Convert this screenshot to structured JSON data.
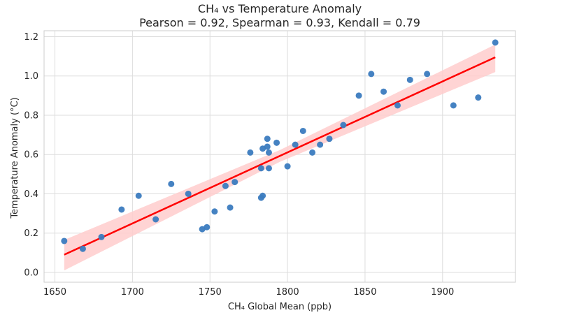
{
  "chart_data": {
    "type": "scatter",
    "title": "CH₄ vs Temperature Anomaly",
    "subtitle": "Pearson = 0.92, Spearman = 0.93, Kendall = 0.79",
    "xlabel": "CH₄ Global Mean (ppb)",
    "ylabel": "Temperature Anomaly (°C)",
    "xlim": [
      1643,
      1947
    ],
    "ylim": [
      -0.05,
      1.23
    ],
    "xticks": [
      1650,
      1700,
      1750,
      1800,
      1850,
      1900
    ],
    "yticks": [
      0.0,
      0.2,
      0.4,
      0.6,
      0.8,
      1.0,
      1.2
    ],
    "ytick_labels": [
      "0.0",
      "0.2",
      "0.4",
      "0.6",
      "0.8",
      "1.0",
      "1.2"
    ],
    "grid": true,
    "points": [
      {
        "x": 1656,
        "y": 0.16
      },
      {
        "x": 1668,
        "y": 0.12
      },
      {
        "x": 1680,
        "y": 0.18
      },
      {
        "x": 1693,
        "y": 0.32
      },
      {
        "x": 1704,
        "y": 0.39
      },
      {
        "x": 1715,
        "y": 0.27
      },
      {
        "x": 1725,
        "y": 0.45
      },
      {
        "x": 1736,
        "y": 0.4
      },
      {
        "x": 1745,
        "y": 0.22
      },
      {
        "x": 1748,
        "y": 0.23
      },
      {
        "x": 1753,
        "y": 0.31
      },
      {
        "x": 1760,
        "y": 0.44
      },
      {
        "x": 1763,
        "y": 0.33
      },
      {
        "x": 1766,
        "y": 0.46
      },
      {
        "x": 1776,
        "y": 0.61
      },
      {
        "x": 1783,
        "y": 0.53
      },
      {
        "x": 1783,
        "y": 0.38
      },
      {
        "x": 1784,
        "y": 0.39
      },
      {
        "x": 1784,
        "y": 0.63
      },
      {
        "x": 1787,
        "y": 0.64
      },
      {
        "x": 1787,
        "y": 0.68
      },
      {
        "x": 1788,
        "y": 0.61
      },
      {
        "x": 1788,
        "y": 0.53
      },
      {
        "x": 1793,
        "y": 0.66
      },
      {
        "x": 1800,
        "y": 0.54
      },
      {
        "x": 1805,
        "y": 0.65
      },
      {
        "x": 1810,
        "y": 0.72
      },
      {
        "x": 1816,
        "y": 0.61
      },
      {
        "x": 1821,
        "y": 0.65
      },
      {
        "x": 1827,
        "y": 0.68
      },
      {
        "x": 1836,
        "y": 0.75
      },
      {
        "x": 1846,
        "y": 0.9
      },
      {
        "x": 1854,
        "y": 1.01
      },
      {
        "x": 1862,
        "y": 0.92
      },
      {
        "x": 1871,
        "y": 0.85
      },
      {
        "x": 1879,
        "y": 0.98
      },
      {
        "x": 1890,
        "y": 1.01
      },
      {
        "x": 1907,
        "y": 0.85
      },
      {
        "x": 1923,
        "y": 0.89
      },
      {
        "x": 1934,
        "y": 1.17
      }
    ],
    "regression": {
      "x_start": 1656,
      "y_start": 0.09,
      "x_end": 1934,
      "y_end": 1.095,
      "ci_at_start": [
        0.01,
        0.165
      ],
      "ci_mid": 0.5,
      "ci_at_end": [
        1.02,
        1.16
      ]
    },
    "colors": {
      "points": "#3b7bbf",
      "line": "#ff0000",
      "band": "#ffcccc",
      "grid": "#dddddd",
      "frame": "#cccccc",
      "text": "#262626"
    }
  }
}
